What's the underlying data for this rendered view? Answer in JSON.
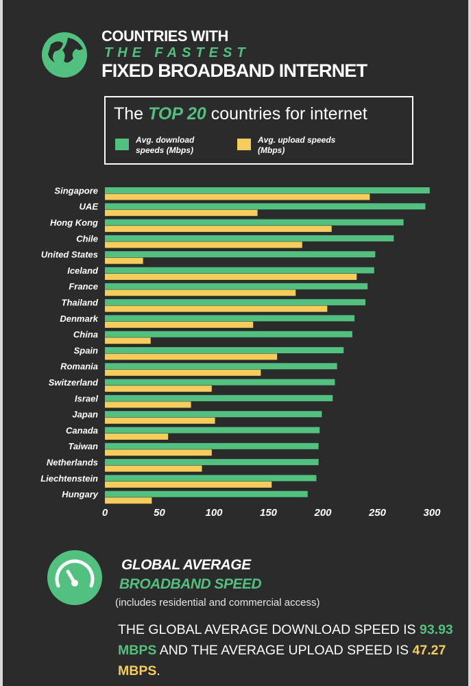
{
  "header": {
    "title_line1": "COUNTRIES WITH",
    "title_line2": "THE FASTEST",
    "title_line3": "FIXED BROADBAND INTERNET"
  },
  "legend_title": {
    "prefix": "The",
    "highlight": "TOP 20",
    "suffix": "countries for internet"
  },
  "chart_data": {
    "type": "bar",
    "orientation": "horizontal",
    "categories": [
      "Singapore",
      "UAE",
      "Hong Kong",
      "Chile",
      "United States",
      "Iceland",
      "France",
      "Thailand",
      "Denmark",
      "China",
      "Spain",
      "Romania",
      "Switzerland",
      "Israel",
      "Japan",
      "Canada",
      "Taiwan",
      "Netherlands",
      "Liechtenstein",
      "Hungary"
    ],
    "series": [
      {
        "name": "Avg. download speeds (Mbps)",
        "color": "#52c17f",
        "values": [
          298,
          294,
          274,
          265,
          248,
          247,
          241,
          239,
          229,
          227,
          219,
          213,
          211,
          209,
          199,
          197,
          196,
          196,
          194,
          186
        ]
      },
      {
        "name": "Avg. upload speeds (Mbps)",
        "color": "#f4cd5c",
        "values": [
          243,
          140,
          208,
          181,
          35,
          231,
          175,
          204,
          136,
          42,
          158,
          143,
          98,
          79,
          101,
          58,
          98,
          89,
          153,
          43
        ]
      }
    ],
    "xlim": [
      0,
      300
    ],
    "xticks": [
      0,
      50,
      100,
      150,
      200,
      250,
      300
    ]
  },
  "footer": {
    "heading1": "GLOBAL AVERAGE",
    "heading2": "BROADBAND SPEED",
    "note": "(includes residential and commercial access)",
    "text1": "THE GLOBAL AVERAGE DOWNLOAD SPEED IS",
    "download": "93.93 MBPS",
    "text2": "AND THE AVERAGE UPLOAD SPEED IS",
    "upload": "47.27 MBPS",
    "text3": "."
  }
}
